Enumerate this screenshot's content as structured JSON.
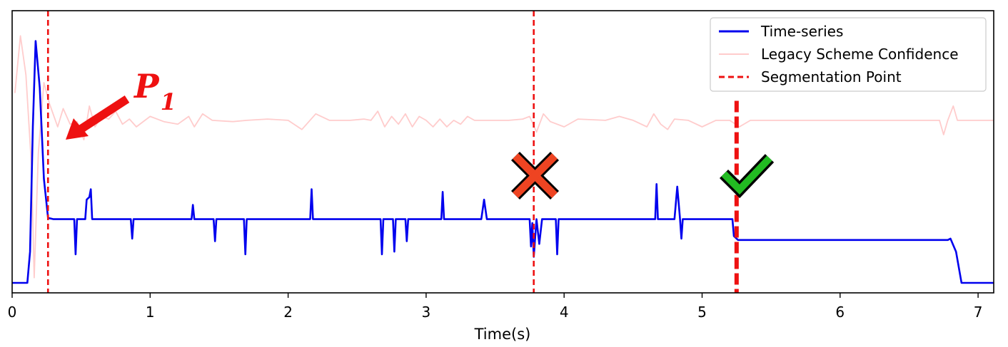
{
  "chart_data": {
    "type": "line",
    "title": "",
    "xlabel": "Time(s)",
    "ylabel": "",
    "xlim": [
      0,
      7.15
    ],
    "ylim": [
      0,
      1
    ],
    "yticks_visible": false,
    "xticks": [
      0,
      1,
      2,
      3,
      4,
      5,
      6,
      7
    ],
    "xtick_labels": [
      "0",
      "1",
      "2",
      "3",
      "4",
      "5",
      "6",
      "7"
    ],
    "grid": false,
    "legend_position": "top-right",
    "series": [
      {
        "name": "Time-series",
        "color": "#0000ee",
        "style": "solid",
        "baseline": 0.245,
        "points": [
          [
            0.0,
            0.0
          ],
          [
            0.11,
            0.0
          ],
          [
            0.13,
            0.12
          ],
          [
            0.15,
            0.6
          ],
          [
            0.17,
            0.93
          ],
          [
            0.2,
            0.75
          ],
          [
            0.23,
            0.4
          ],
          [
            0.26,
            0.25
          ],
          [
            0.3,
            0.245
          ],
          [
            0.45,
            0.245
          ],
          [
            0.46,
            0.11
          ],
          [
            0.47,
            0.245
          ],
          [
            0.5,
            0.245
          ],
          [
            0.53,
            0.245
          ],
          [
            0.54,
            0.32
          ],
          [
            0.56,
            0.33
          ],
          [
            0.57,
            0.36
          ],
          [
            0.58,
            0.245
          ],
          [
            0.86,
            0.245
          ],
          [
            0.87,
            0.17
          ],
          [
            0.88,
            0.245
          ],
          [
            1.3,
            0.245
          ],
          [
            1.31,
            0.3
          ],
          [
            1.32,
            0.245
          ],
          [
            1.46,
            0.245
          ],
          [
            1.47,
            0.16
          ],
          [
            1.48,
            0.245
          ],
          [
            1.68,
            0.245
          ],
          [
            1.69,
            0.11
          ],
          [
            1.7,
            0.245
          ],
          [
            2.16,
            0.245
          ],
          [
            2.17,
            0.36
          ],
          [
            2.18,
            0.245
          ],
          [
            2.67,
            0.245
          ],
          [
            2.68,
            0.11
          ],
          [
            2.69,
            0.245
          ],
          [
            2.76,
            0.245
          ],
          [
            2.77,
            0.12
          ],
          [
            2.78,
            0.245
          ],
          [
            2.85,
            0.245
          ],
          [
            2.86,
            0.16
          ],
          [
            2.87,
            0.245
          ],
          [
            3.11,
            0.245
          ],
          [
            3.12,
            0.35
          ],
          [
            3.13,
            0.245
          ],
          [
            3.4,
            0.245
          ],
          [
            3.42,
            0.32
          ],
          [
            3.44,
            0.245
          ],
          [
            3.75,
            0.245
          ],
          [
            3.76,
            0.14
          ],
          [
            3.77,
            0.23
          ],
          [
            3.78,
            0.1
          ],
          [
            3.8,
            0.245
          ],
          [
            3.82,
            0.15
          ],
          [
            3.84,
            0.245
          ],
          [
            3.94,
            0.245
          ],
          [
            3.95,
            0.11
          ],
          [
            3.96,
            0.245
          ],
          [
            4.66,
            0.245
          ],
          [
            4.67,
            0.38
          ],
          [
            4.68,
            0.245
          ],
          [
            4.8,
            0.245
          ],
          [
            4.82,
            0.37
          ],
          [
            4.84,
            0.245
          ],
          [
            4.85,
            0.17
          ],
          [
            4.86,
            0.245
          ],
          [
            5.22,
            0.245
          ],
          [
            5.23,
            0.18
          ],
          [
            5.26,
            0.165
          ],
          [
            5.35,
            0.165
          ],
          [
            6.78,
            0.165
          ],
          [
            6.8,
            0.17
          ],
          [
            6.84,
            0.12
          ],
          [
            6.88,
            0.0
          ],
          [
            7.15,
            0.0
          ]
        ]
      },
      {
        "name": "Legacy Scheme Confidence",
        "color": "#ffcccc",
        "style": "solid",
        "baseline": 0.625,
        "points": [
          [
            0.02,
            0.73
          ],
          [
            0.06,
            0.95
          ],
          [
            0.1,
            0.8
          ],
          [
            0.14,
            0.45
          ],
          [
            0.16,
            0.02
          ],
          [
            0.19,
            0.5
          ],
          [
            0.23,
            0.77
          ],
          [
            0.27,
            0.69
          ],
          [
            0.33,
            0.6
          ],
          [
            0.37,
            0.67
          ],
          [
            0.42,
            0.61
          ],
          [
            0.47,
            0.62
          ],
          [
            0.52,
            0.55
          ],
          [
            0.56,
            0.68
          ],
          [
            0.6,
            0.6
          ],
          [
            0.65,
            0.64
          ],
          [
            0.7,
            0.63
          ],
          [
            0.75,
            0.66
          ],
          [
            0.8,
            0.61
          ],
          [
            0.85,
            0.63
          ],
          [
            0.9,
            0.6
          ],
          [
            1.0,
            0.64
          ],
          [
            1.1,
            0.62
          ],
          [
            1.2,
            0.61
          ],
          [
            1.28,
            0.64
          ],
          [
            1.32,
            0.6
          ],
          [
            1.38,
            0.65
          ],
          [
            1.45,
            0.625
          ],
          [
            1.6,
            0.62
          ],
          [
            1.7,
            0.625
          ],
          [
            1.85,
            0.63
          ],
          [
            2.0,
            0.625
          ],
          [
            2.1,
            0.59
          ],
          [
            2.2,
            0.65
          ],
          [
            2.3,
            0.625
          ],
          [
            2.45,
            0.625
          ],
          [
            2.55,
            0.63
          ],
          [
            2.6,
            0.625
          ],
          [
            2.65,
            0.66
          ],
          [
            2.7,
            0.6
          ],
          [
            2.75,
            0.64
          ],
          [
            2.8,
            0.61
          ],
          [
            2.85,
            0.65
          ],
          [
            2.9,
            0.6
          ],
          [
            2.95,
            0.64
          ],
          [
            3.0,
            0.625
          ],
          [
            3.05,
            0.6
          ],
          [
            3.1,
            0.63
          ],
          [
            3.15,
            0.6
          ],
          [
            3.2,
            0.625
          ],
          [
            3.25,
            0.61
          ],
          [
            3.3,
            0.64
          ],
          [
            3.35,
            0.625
          ],
          [
            3.6,
            0.625
          ],
          [
            3.7,
            0.63
          ],
          [
            3.75,
            0.64
          ],
          [
            3.8,
            0.58
          ],
          [
            3.85,
            0.65
          ],
          [
            3.9,
            0.62
          ],
          [
            4.0,
            0.6
          ],
          [
            4.1,
            0.63
          ],
          [
            4.3,
            0.625
          ],
          [
            4.4,
            0.64
          ],
          [
            4.5,
            0.625
          ],
          [
            4.6,
            0.6
          ],
          [
            4.65,
            0.65
          ],
          [
            4.7,
            0.61
          ],
          [
            4.75,
            0.59
          ],
          [
            4.8,
            0.63
          ],
          [
            4.9,
            0.625
          ],
          [
            5.0,
            0.6
          ],
          [
            5.1,
            0.625
          ],
          [
            5.2,
            0.625
          ],
          [
            5.27,
            0.6
          ],
          [
            5.35,
            0.625
          ],
          [
            6.6,
            0.625
          ],
          [
            6.72,
            0.625
          ],
          [
            6.75,
            0.57
          ],
          [
            6.78,
            0.625
          ],
          [
            6.82,
            0.68
          ],
          [
            6.85,
            0.625
          ],
          [
            7.15,
            0.625
          ]
        ]
      }
    ],
    "segmentation_points": {
      "name": "Segmentation Point",
      "color": "#ee1111",
      "style": "dashed",
      "items": [
        {
          "x": 0.26,
          "bold": false
        },
        {
          "x": 3.78,
          "bold": false
        },
        {
          "x": 5.25,
          "bold": true,
          "y_range": [
            0.0,
            0.7
          ]
        }
      ]
    },
    "annotations": [
      {
        "type": "arrow",
        "color": "#ee1111",
        "target": {
          "x": 0.38,
          "y": 0.55
        }
      },
      {
        "type": "text",
        "text": "P",
        "subscript": "1",
        "color": "#ee1111"
      },
      {
        "type": "cross-mark",
        "color": "#ee4422",
        "x": 3.82,
        "y": 0.41
      },
      {
        "type": "check-mark",
        "color": "#22bb22",
        "x": 5.32,
        "y": 0.41
      }
    ]
  }
}
